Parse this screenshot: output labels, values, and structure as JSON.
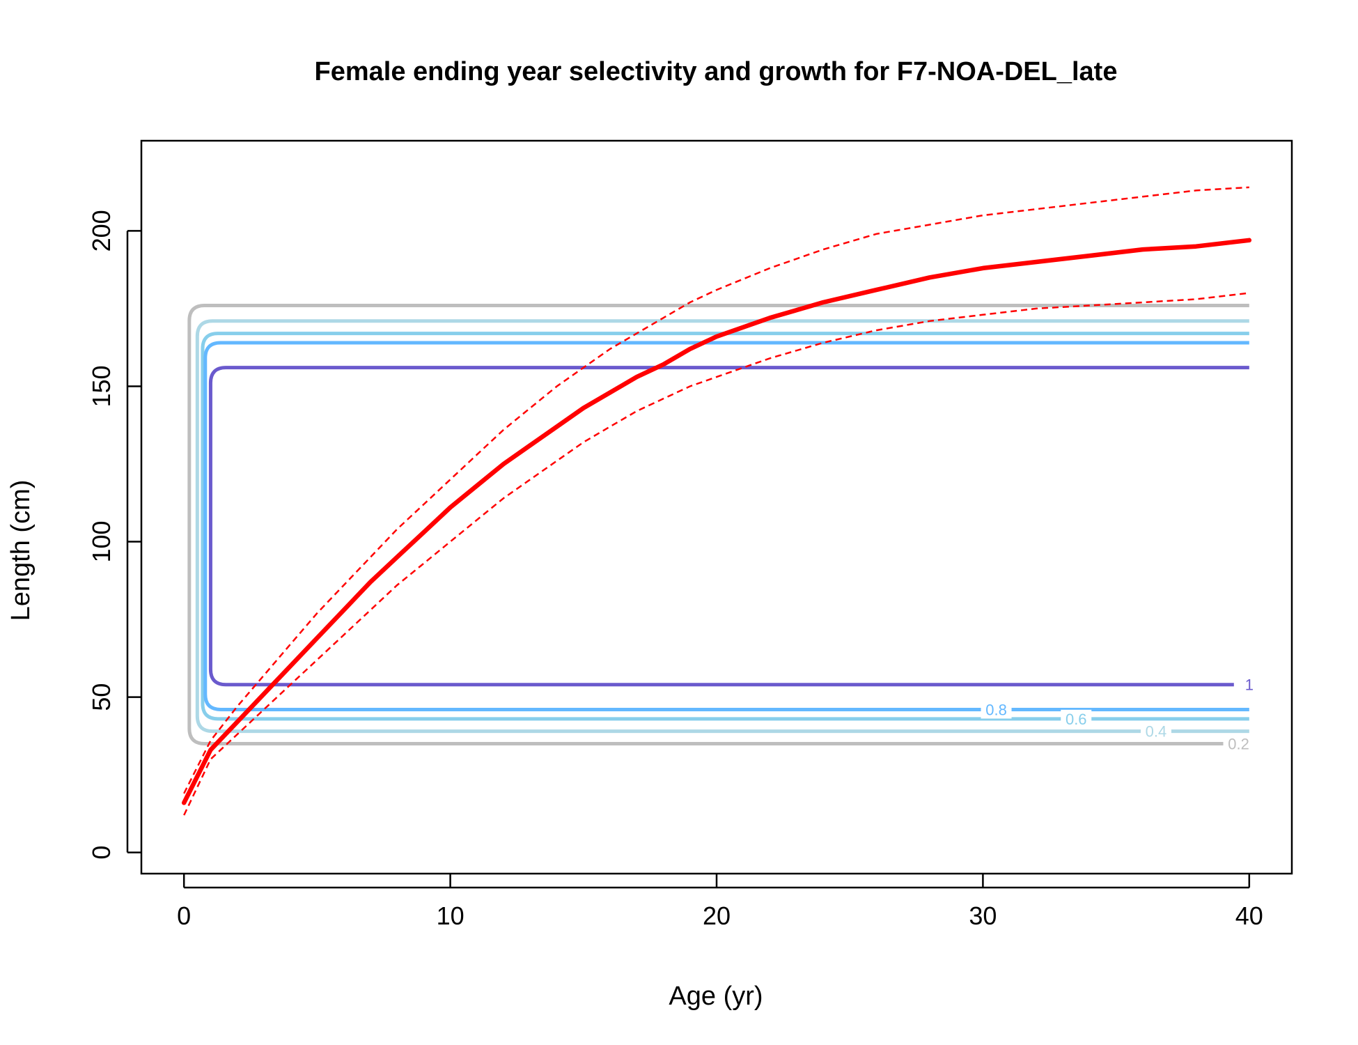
{
  "chart_data": {
    "type": "line",
    "title": "Female ending year selectivity and growth for F7-NOA-DEL_late",
    "xlabel": "Age (yr)",
    "ylabel": "Length (cm)",
    "xlim": [
      -1.6,
      41.6
    ],
    "ylim": [
      -6.8,
      229
    ],
    "x_ticks": [
      0,
      10,
      20,
      30,
      40
    ],
    "y_ticks": [
      0,
      50,
      100,
      150,
      200
    ],
    "grid": false,
    "growth": {
      "color": "#ff0000",
      "ages": [
        0,
        1,
        2,
        3,
        4,
        5,
        6,
        7,
        8,
        9,
        10,
        11,
        12,
        13,
        14,
        15,
        16,
        17,
        18,
        19,
        20,
        22,
        24,
        26,
        28,
        30,
        32,
        34,
        36,
        38,
        40
      ],
      "mean": [
        16,
        33,
        42,
        51,
        60,
        69,
        78,
        87,
        95,
        103,
        111,
        118,
        125,
        131,
        137,
        143,
        148,
        153,
        157,
        162,
        166,
        172,
        177,
        181,
        185,
        188,
        190,
        192,
        194,
        195,
        197
      ],
      "upper": [
        19,
        36,
        47,
        57,
        67,
        77,
        86,
        95,
        104,
        112,
        120,
        128,
        136,
        143,
        150,
        156,
        162,
        167,
        172,
        177,
        181,
        188,
        194,
        199,
        202,
        205,
        207,
        209,
        211,
        213,
        214
      ],
      "lower": [
        12,
        30,
        38,
        46,
        54,
        62,
        70,
        78,
        86,
        93,
        100,
        107,
        114,
        120,
        126,
        132,
        137,
        142,
        146,
        150,
        153,
        159,
        164,
        168,
        171,
        173,
        175,
        176,
        177,
        178,
        180
      ]
    },
    "selectivity_contours": [
      {
        "level": "0.2",
        "color": "#bebebe",
        "x_left": 0.2,
        "y_low": 35,
        "y_high": 176,
        "label_x": 39.6
      },
      {
        "level": "0.4",
        "color": "#add8e6",
        "x_left": 0.5,
        "y_low": 39,
        "y_high": 171,
        "label_x": 36.5
      },
      {
        "level": "0.6",
        "color": "#87ceeb",
        "x_left": 0.7,
        "y_low": 43,
        "y_high": 167,
        "label_x": 33.5
      },
      {
        "level": "0.8",
        "color": "#63b8ff",
        "x_left": 0.8,
        "y_low": 46,
        "y_high": 164,
        "label_x": 30.5
      },
      {
        "level": "1",
        "color": "#6a5acd",
        "x_left": 1.0,
        "y_low": 54,
        "y_high": 156,
        "label_x": 40.0
      }
    ]
  }
}
